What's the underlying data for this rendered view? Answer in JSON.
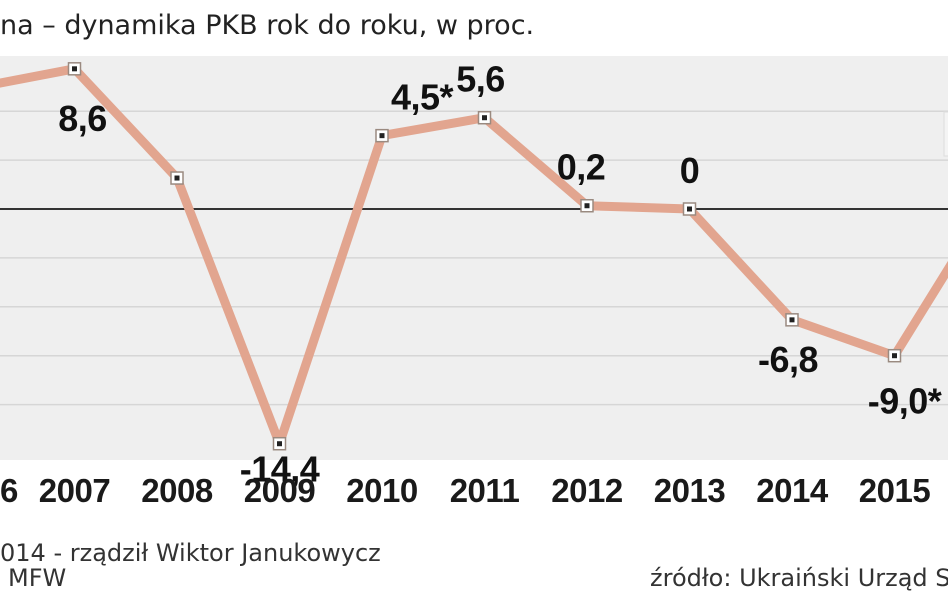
{
  "colors": {
    "line": "#e2a58f",
    "marker_fill": "#ffffff",
    "marker_border": "#9a8a80",
    "marker_center": "#222222",
    "band": "#efefef",
    "grid": "#d6d6d6",
    "zero_line": "#333333"
  },
  "chart_data": {
    "type": "line",
    "title": "na – dynamika PKB rok do roku, w proc.",
    "x": [
      "6",
      "2007",
      "2008",
      "2009",
      "2010",
      "2011",
      "2012",
      "2013",
      "2014",
      "2015"
    ],
    "series": [
      {
        "values": [
          7.4,
          8.6,
          1.9,
          -14.4,
          4.5,
          5.6,
          0.2,
          0,
          -6.8,
          -9.0
        ],
        "labels": [
          "",
          "8,6",
          "",
          "-14,4",
          "4,5*",
          "5,6",
          "0,2",
          "0",
          "-6,8",
          "-9,0*"
        ]
      }
    ],
    "ylim": [
      -15,
      9
    ],
    "grid": true
  },
  "notes": {
    "left_line1": "014 - rządził Wiktor Janukowycz",
    "left_line2": "MFW",
    "source": "źródło: Ukraiński Urząd S"
  }
}
